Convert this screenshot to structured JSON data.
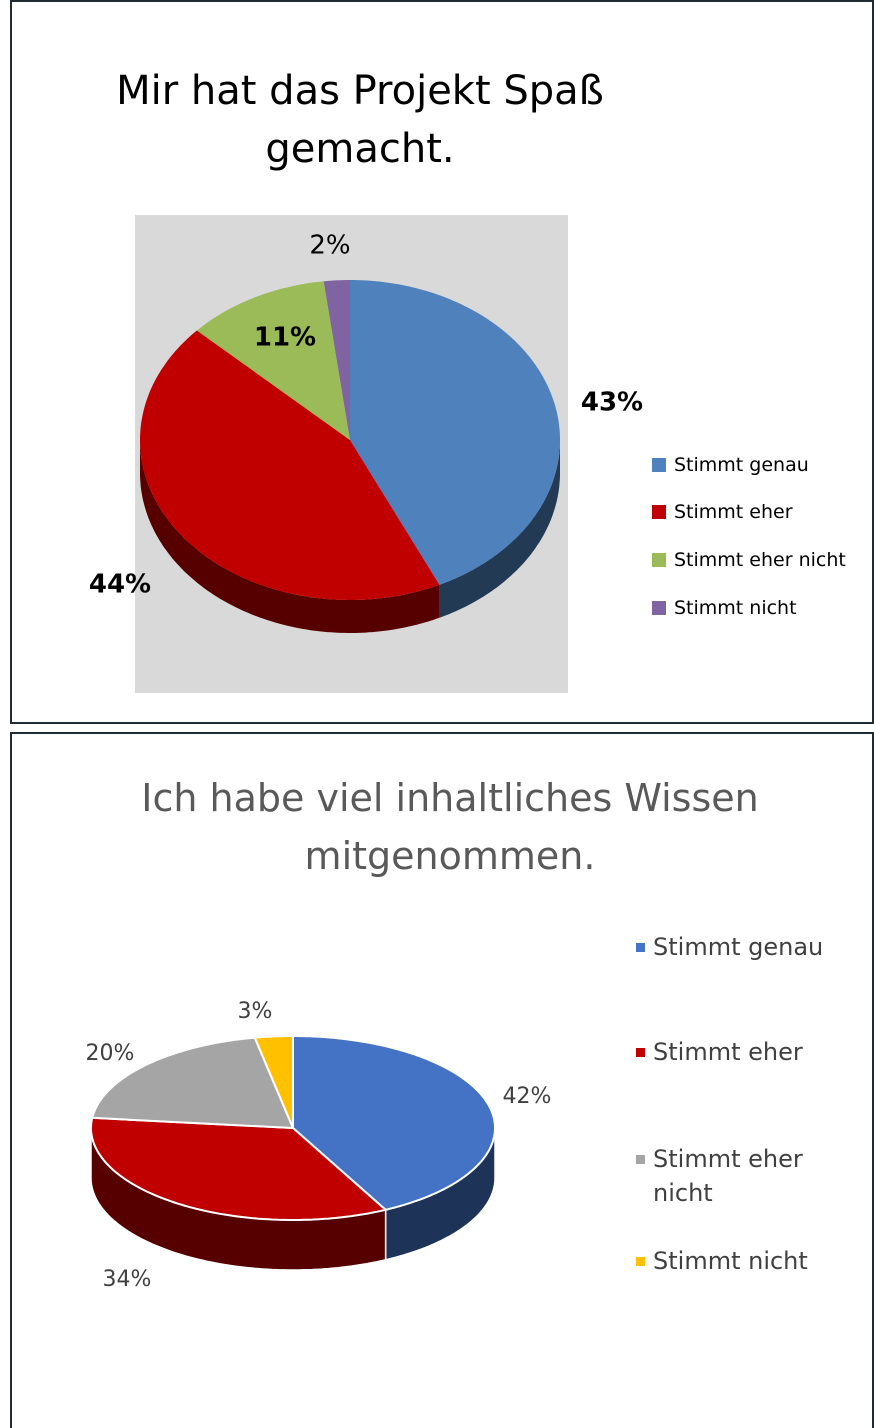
{
  "chart_data": [
    {
      "type": "pie",
      "title": "Mir hat das Projekt Spaß gemacht.",
      "categories": [
        "Stimmt genau",
        "Stimmt eher",
        "Stimmt eher nicht",
        "Stimmt nicht"
      ],
      "values": [
        43,
        44,
        11,
        2
      ],
      "value_labels": [
        "43%",
        "44%",
        "11%",
        "2%"
      ],
      "colors": [
        "#4f81bd",
        "#c00000",
        "#9bbb59",
        "#8064a2"
      ],
      "legend": "right"
    },
    {
      "type": "pie",
      "title": "Ich habe viel inhaltliches Wissen mitgenommen.",
      "categories": [
        "Stimmt genau",
        "Stimmt eher",
        "Stimmt eher nicht",
        "Stimmt nicht"
      ],
      "values": [
        42,
        34,
        20,
        3
      ],
      "value_labels": [
        "42%",
        "34%",
        "20%",
        "3%"
      ],
      "colors": [
        "#4472c4",
        "#c00000",
        "#a5a5a5",
        "#ffc000"
      ],
      "legend": "right"
    }
  ]
}
